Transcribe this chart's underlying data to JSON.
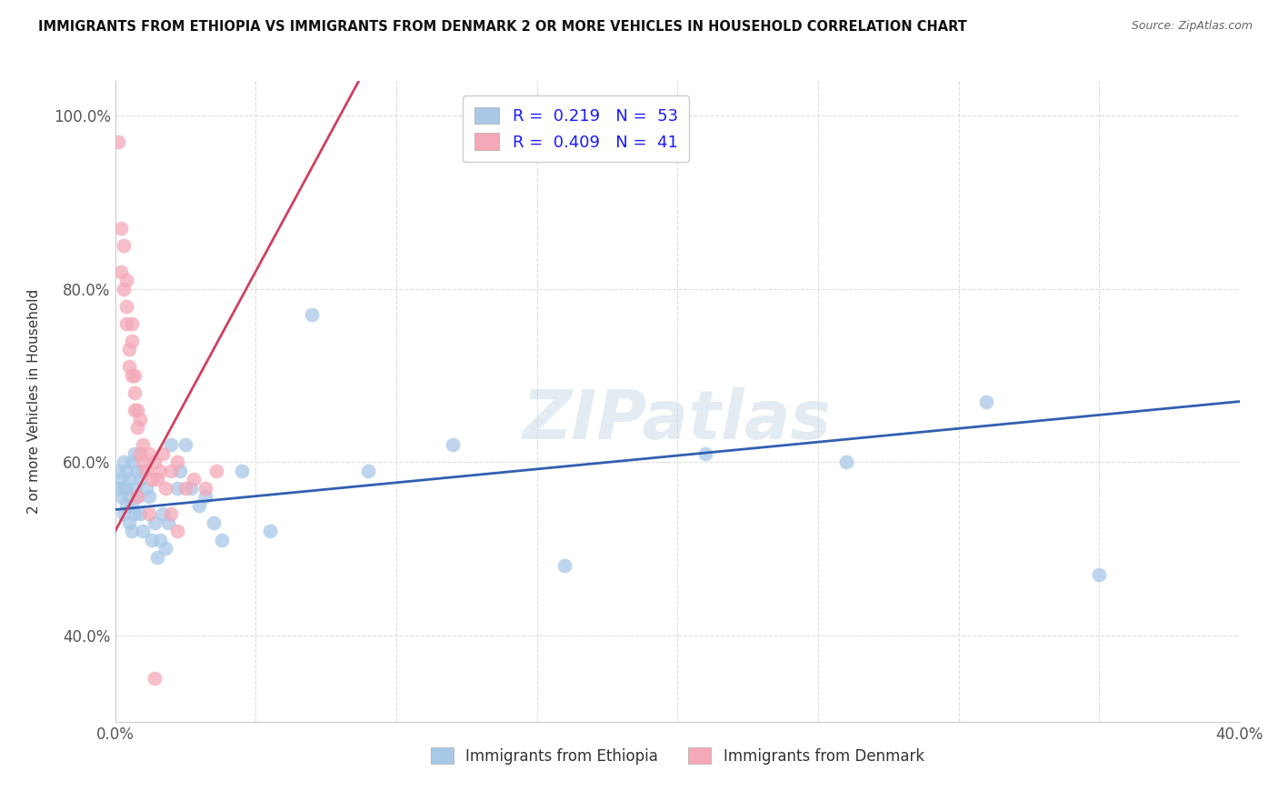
{
  "title": "IMMIGRANTS FROM ETHIOPIA VS IMMIGRANTS FROM DENMARK 2 OR MORE VEHICLES IN HOUSEHOLD CORRELATION CHART",
  "source": "Source: ZipAtlas.com",
  "ylabel": "2 or more Vehicles in Household",
  "xmin": 0.0,
  "xmax": 0.4,
  "ymin": 0.3,
  "ymax": 1.04,
  "yticks": [
    0.4,
    0.6,
    0.8,
    1.0
  ],
  "ytick_labels": [
    "40.0%",
    "60.0%",
    "80.0%",
    "100.0%"
  ],
  "xticks": [
    0.0,
    0.05,
    0.1,
    0.15,
    0.2,
    0.25,
    0.3,
    0.35,
    0.4
  ],
  "xtick_labels": [
    "0.0%",
    "",
    "",
    "",
    "",
    "",
    "",
    "",
    "40.0%"
  ],
  "ethiopia_color": "#a8c8e8",
  "denmark_color": "#f4a8b8",
  "ethiopia_line_color": "#3060b0",
  "denmark_line_color": "#d04060",
  "R_ethiopia": 0.219,
  "N_ethiopia": 53,
  "R_denmark": 0.409,
  "N_denmark": 41,
  "ethiopia_x": [
    0.001,
    0.001,
    0.002,
    0.002,
    0.003,
    0.003,
    0.003,
    0.004,
    0.004,
    0.004,
    0.005,
    0.005,
    0.005,
    0.006,
    0.006,
    0.006,
    0.007,
    0.007,
    0.007,
    0.008,
    0.008,
    0.009,
    0.009,
    0.01,
    0.01,
    0.011,
    0.012,
    0.013,
    0.014,
    0.015,
    0.016,
    0.017,
    0.018,
    0.019,
    0.02,
    0.022,
    0.023,
    0.025,
    0.027,
    0.03,
    0.032,
    0.035,
    0.038,
    0.045,
    0.055,
    0.07,
    0.09,
    0.12,
    0.16,
    0.21,
    0.26,
    0.31,
    0.35
  ],
  "ethiopia_y": [
    0.57,
    0.59,
    0.56,
    0.58,
    0.54,
    0.57,
    0.6,
    0.55,
    0.57,
    0.59,
    0.53,
    0.56,
    0.58,
    0.52,
    0.55,
    0.6,
    0.54,
    0.57,
    0.61,
    0.56,
    0.59,
    0.54,
    0.58,
    0.52,
    0.59,
    0.57,
    0.56,
    0.51,
    0.53,
    0.49,
    0.51,
    0.54,
    0.5,
    0.53,
    0.62,
    0.57,
    0.59,
    0.62,
    0.57,
    0.55,
    0.56,
    0.53,
    0.51,
    0.59,
    0.52,
    0.77,
    0.59,
    0.62,
    0.48,
    0.61,
    0.6,
    0.67,
    0.47
  ],
  "denmark_x": [
    0.001,
    0.002,
    0.002,
    0.003,
    0.003,
    0.004,
    0.004,
    0.004,
    0.005,
    0.005,
    0.006,
    0.006,
    0.006,
    0.007,
    0.007,
    0.007,
    0.008,
    0.008,
    0.009,
    0.009,
    0.01,
    0.01,
    0.011,
    0.012,
    0.013,
    0.014,
    0.015,
    0.016,
    0.017,
    0.018,
    0.02,
    0.022,
    0.025,
    0.028,
    0.032,
    0.036,
    0.02,
    0.022,
    0.014,
    0.012,
    0.008
  ],
  "denmark_y": [
    0.97,
    0.87,
    0.82,
    0.8,
    0.85,
    0.78,
    0.76,
    0.81,
    0.73,
    0.71,
    0.7,
    0.74,
    0.76,
    0.66,
    0.7,
    0.68,
    0.64,
    0.66,
    0.61,
    0.65,
    0.6,
    0.62,
    0.59,
    0.61,
    0.58,
    0.6,
    0.58,
    0.59,
    0.61,
    0.57,
    0.59,
    0.6,
    0.57,
    0.58,
    0.57,
    0.59,
    0.54,
    0.52,
    0.35,
    0.54,
    0.56
  ],
  "eth_line_x0": 0.0,
  "eth_line_x1": 0.4,
  "eth_line_y0": 0.545,
  "eth_line_y1": 0.67,
  "den_line_x0": 0.0,
  "den_line_x1": 0.04,
  "den_line_y0": 0.52,
  "den_line_y1": 0.76,
  "watermark": "ZIPatlas",
  "legend_ethiopia": "Immigrants from Ethiopia",
  "legend_denmark": "Immigrants from Denmark",
  "background_color": "#ffffff",
  "grid_color": "#dddddd"
}
